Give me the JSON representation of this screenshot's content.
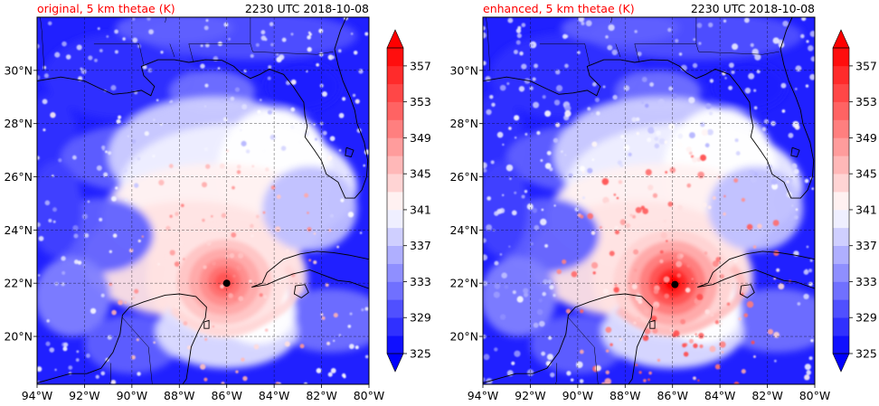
{
  "chart_data": [
    {
      "type": "heatmap",
      "title_left": "original, 5 km thetae (K)",
      "title_right": "2230 UTC 2018-10-08",
      "variable": "thetae",
      "units": "K",
      "x_ticks": [
        "94°W",
        "92°W",
        "90°W",
        "88°W",
        "86°W",
        "84°W",
        "82°W",
        "80°W"
      ],
      "y_ticks": [
        "20°N",
        "22°N",
        "24°N",
        "26°N",
        "28°N",
        "30°N"
      ],
      "lon_range": [
        -94,
        -80
      ],
      "lat_range": [
        18.2,
        32.0
      ],
      "grid": true,
      "storm_center": {
        "lon": -86.0,
        "lat": 22.0
      },
      "colorbar": {
        "min": 325,
        "max": 359,
        "step": 2,
        "tick_labels": [
          "325",
          "329",
          "333",
          "337",
          "341",
          "345",
          "349",
          "353",
          "357"
        ],
        "extend": "both"
      }
    },
    {
      "type": "heatmap",
      "title_left": "enhanced, 5 km thetae (K)",
      "title_right": "2230 UTC 2018-10-08",
      "variable": "thetae",
      "units": "K",
      "x_ticks": [
        "94°W",
        "92°W",
        "90°W",
        "88°W",
        "86°W",
        "84°W",
        "82°W",
        "80°W"
      ],
      "y_ticks": [
        "20°N",
        "22°N",
        "24°N",
        "26°N",
        "28°N",
        "30°N"
      ],
      "lon_range": [
        -94,
        -80
      ],
      "lat_range": [
        18.2,
        32.0
      ],
      "grid": true,
      "storm_center": {
        "lon": -85.9,
        "lat": 21.95
      },
      "colorbar": {
        "min": 325,
        "max": 359,
        "step": 2,
        "tick_labels": [
          "325",
          "329",
          "333",
          "337",
          "341",
          "345",
          "349",
          "353",
          "357"
        ],
        "extend": "both"
      }
    }
  ],
  "colors": {
    "title_left": "#ff0000",
    "title_right": "#000000",
    "cold": "#0000ff",
    "neutral": "#ffffff",
    "warm": "#ff0000",
    "coast": "#000000",
    "grid": "#000000"
  }
}
